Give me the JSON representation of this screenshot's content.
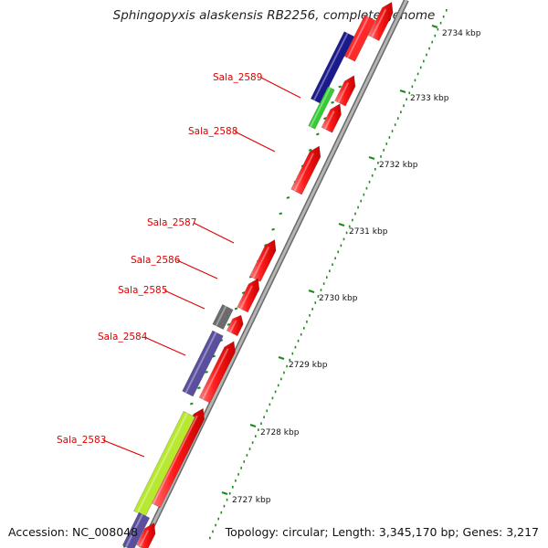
{
  "title": "Sphingopyxis alaskensis RB2256, complete genome",
  "footer": {
    "accession": "Accession: NC_008048",
    "summary": "Topology: circular; Length: 3,345,170 bp; Genes: 3,217"
  },
  "gene_labels": [
    "Sala_2583",
    "Sala_2584",
    "Sala_2585",
    "Sala_2586",
    "Sala_2587",
    "Sala_2588",
    "Sala_2589"
  ],
  "scale_labels": [
    "2727 kbp",
    "2728 kbp",
    "2729 kbp",
    "2730 kbp",
    "2731 kbp",
    "2732 kbp",
    "2733 kbp",
    "2734 kbp"
  ],
  "colors": {
    "cds": "#ff1a1a",
    "navy": "#1a1a8c",
    "slate": "#5a4f9e",
    "grey": "#6b6b6b",
    "green": "#33cc33",
    "lime": "#b8e830",
    "backbone": "#9a9a9a",
    "label": "#e00000",
    "tick": "#1a8a1a"
  }
}
